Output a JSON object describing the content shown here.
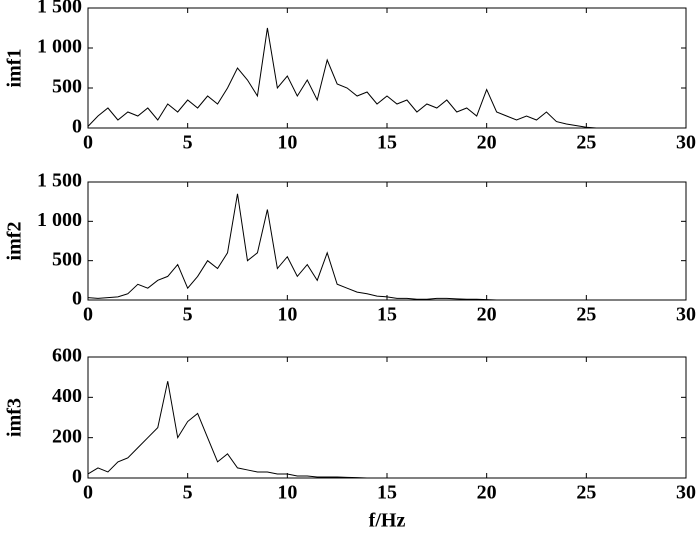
{
  "chart_data": [
    {
      "type": "line",
      "y_label": "imf1",
      "xlim": [
        0,
        30
      ],
      "xticks": [
        0,
        5,
        10,
        15,
        20,
        25,
        30
      ],
      "ylim": [
        0,
        1500
      ],
      "yticks": [
        0,
        500,
        {
          "value": 1000,
          "label": "1 000"
        },
        {
          "value": 1500,
          "label": "1 500"
        }
      ],
      "color": "#000000",
      "x": [
        0,
        0.5,
        1,
        1.5,
        2,
        2.5,
        3,
        3.5,
        4,
        4.5,
        5,
        5.5,
        6,
        6.5,
        7,
        7.5,
        8,
        8.5,
        9,
        9.5,
        10,
        10.5,
        11,
        11.5,
        12,
        12.5,
        13,
        13.5,
        14,
        14.5,
        15,
        15.5,
        16,
        16.5,
        17,
        17.5,
        18,
        18.5,
        19,
        19.5,
        20,
        20.5,
        21,
        21.5,
        22,
        22.5,
        23,
        23.5,
        24,
        24.5,
        25,
        25.5,
        26,
        26.5,
        27,
        27.5,
        28,
        28.5,
        29,
        29.5,
        30
      ],
      "values": [
        20,
        150,
        250,
        100,
        200,
        150,
        250,
        100,
        300,
        200,
        350,
        250,
        400,
        300,
        500,
        750,
        600,
        400,
        1250,
        500,
        650,
        400,
        600,
        350,
        850,
        550,
        500,
        400,
        450,
        300,
        400,
        300,
        350,
        200,
        300,
        250,
        350,
        200,
        250,
        150,
        480,
        200,
        150,
        100,
        150,
        100,
        200,
        80,
        50,
        30,
        10,
        0,
        0,
        0,
        0,
        0,
        0,
        0,
        0,
        0,
        0
      ]
    },
    {
      "type": "line",
      "y_label": "imf2",
      "xlim": [
        0,
        30
      ],
      "xticks": [
        0,
        5,
        10,
        15,
        20,
        25,
        30
      ],
      "ylim": [
        0,
        1500
      ],
      "yticks": [
        0,
        500,
        {
          "value": 1000,
          "label": "1 000"
        },
        {
          "value": 1500,
          "label": "1 500"
        }
      ],
      "color": "#000000",
      "x": [
        0,
        0.5,
        1,
        1.5,
        2,
        2.5,
        3,
        3.5,
        4,
        4.5,
        5,
        5.5,
        6,
        6.5,
        7,
        7.5,
        8,
        8.5,
        9,
        9.5,
        10,
        10.5,
        11,
        11.5,
        12,
        12.5,
        13,
        13.5,
        14,
        14.5,
        15,
        15.5,
        16,
        16.5,
        17,
        17.5,
        18,
        18.5,
        19,
        19.5,
        20,
        20.5,
        21,
        21.5,
        22,
        22.5,
        23,
        23.5,
        24,
        24.5,
        25,
        25.5,
        26,
        26.5,
        27,
        27.5,
        28,
        28.5,
        29,
        29.5,
        30
      ],
      "values": [
        30,
        20,
        30,
        40,
        80,
        200,
        150,
        250,
        300,
        450,
        150,
        300,
        500,
        400,
        600,
        1350,
        500,
        600,
        1150,
        400,
        550,
        300,
        450,
        250,
        600,
        200,
        150,
        100,
        80,
        50,
        40,
        20,
        20,
        10,
        10,
        20,
        20,
        15,
        10,
        10,
        5,
        0,
        0,
        0,
        0,
        0,
        0,
        0,
        0,
        0,
        0,
        0,
        0,
        0,
        0,
        0,
        0,
        0,
        0,
        0,
        0
      ]
    },
    {
      "type": "line",
      "y_label": "imf3",
      "x_label": "f/Hz",
      "xlim": [
        0,
        30
      ],
      "xticks": [
        0,
        5,
        10,
        15,
        20,
        25,
        30
      ],
      "ylim": [
        0,
        600
      ],
      "yticks": [
        0,
        200,
        400,
        600
      ],
      "color": "#000000",
      "x": [
        0,
        0.5,
        1,
        1.5,
        2,
        2.5,
        3,
        3.5,
        4,
        4.5,
        5,
        5.5,
        6,
        6.5,
        7,
        7.5,
        8,
        8.5,
        9,
        9.5,
        10,
        10.5,
        11,
        11.5,
        12,
        12.5,
        13,
        13.5,
        14,
        14.5,
        15,
        15.5,
        16,
        16.5,
        17,
        17.5,
        18,
        18.5,
        19,
        19.5,
        20,
        20.5,
        21,
        21.5,
        22,
        22.5,
        23,
        23.5,
        24,
        24.5,
        25,
        25.5,
        26,
        26.5,
        27,
        27.5,
        28,
        28.5,
        29,
        29.5,
        30
      ],
      "values": [
        20,
        50,
        30,
        80,
        100,
        150,
        200,
        250,
        480,
        200,
        280,
        320,
        200,
        80,
        120,
        50,
        40,
        30,
        30,
        20,
        20,
        10,
        10,
        5,
        5,
        5,
        3,
        2,
        0,
        0,
        0,
        0,
        0,
        0,
        0,
        0,
        0,
        0,
        0,
        0,
        0,
        0,
        0,
        0,
        0,
        0,
        0,
        0,
        0,
        0,
        0,
        0,
        0,
        0,
        0,
        0,
        0,
        0,
        0,
        0,
        0
      ]
    }
  ]
}
